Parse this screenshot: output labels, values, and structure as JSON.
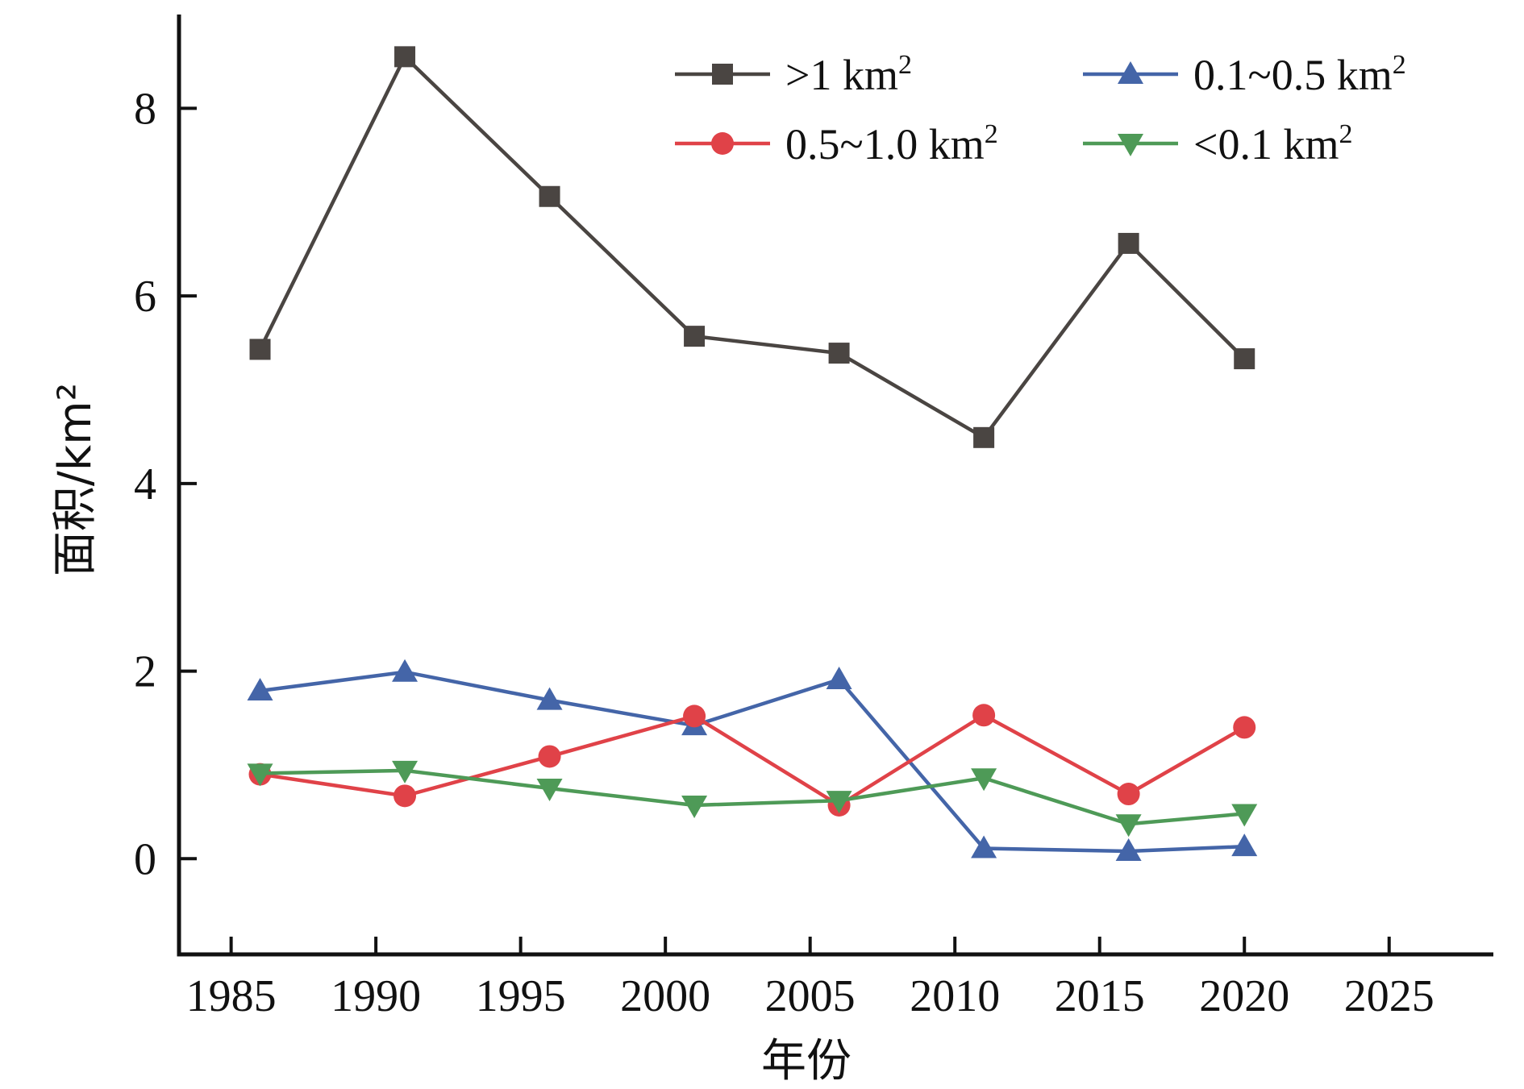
{
  "chart_data": {
    "type": "line",
    "title": "",
    "xlabel": "年份",
    "ylabel": "面积/km²",
    "xlim": [
      1983.2,
      2028.6
    ],
    "ylim": [
      -1.02,
      9.0
    ],
    "x_ticks": [
      1985,
      1990,
      1995,
      2000,
      2005,
      2010,
      2015,
      2020,
      2025
    ],
    "y_ticks": [
      0,
      2,
      4,
      6,
      8
    ],
    "grid": false,
    "legend_position": "top-right",
    "x": [
      1986,
      1991,
      1996,
      2001,
      2006,
      2011,
      2016,
      2020
    ],
    "series": [
      {
        "name": ">1 km²",
        "name_base": ">1 km",
        "name_sup": "2",
        "marker": "square",
        "color": "#4a4542",
        "values": [
          5.43,
          8.55,
          7.06,
          5.57,
          5.39,
          4.49,
          6.56,
          5.33
        ]
      },
      {
        "name": "0.1~0.5 km²",
        "name_base": "0.1~0.5 km",
        "name_sup": "2",
        "marker": "triangle-up",
        "color": "#4465a8",
        "values": [
          1.79,
          1.99,
          1.69,
          1.42,
          1.91,
          0.11,
          0.08,
          0.13
        ]
      },
      {
        "name": "0.5~1.0 km²",
        "name_base": "0.5~1.0 km",
        "name_sup": "2",
        "marker": "circle",
        "color": "#e04248",
        "values": [
          0.9,
          0.67,
          1.09,
          1.52,
          0.57,
          1.53,
          0.69,
          1.4
        ]
      },
      {
        "name": "<0.1 km²",
        "name_base": "<0.1 km",
        "name_sup": "2",
        "marker": "triangle-down",
        "color": "#4e9a57",
        "values": [
          0.91,
          0.94,
          0.75,
          0.57,
          0.62,
          0.86,
          0.37,
          0.48
        ]
      }
    ]
  }
}
